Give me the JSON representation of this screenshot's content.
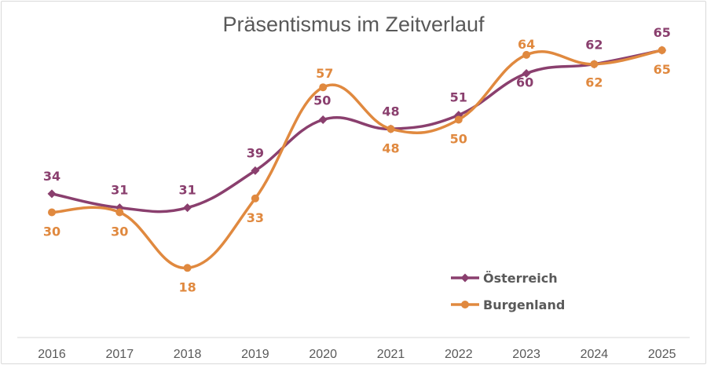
{
  "chart_data": {
    "type": "line",
    "title": "Präsentismus im Zeitverlauf",
    "xlabel": "",
    "ylabel": "",
    "categories": [
      "2016",
      "2017",
      "2018",
      "2019",
      "2020",
      "2021",
      "2022",
      "2023",
      "2024",
      "2025"
    ],
    "ylim": [
      10,
      70
    ],
    "grid": false,
    "legend_position": "bottom-right",
    "smooth": true,
    "series": [
      {
        "name": "Österreich",
        "color": "#8a3f6e",
        "marker": "diamond",
        "values": [
          34,
          31,
          31,
          39,
          50,
          48,
          51,
          60,
          62,
          65
        ]
      },
      {
        "name": "Burgenland",
        "color": "#e0893f",
        "marker": "circle",
        "values": [
          30,
          30,
          18,
          33,
          57,
          48,
          50,
          64,
          62,
          65
        ]
      }
    ]
  }
}
